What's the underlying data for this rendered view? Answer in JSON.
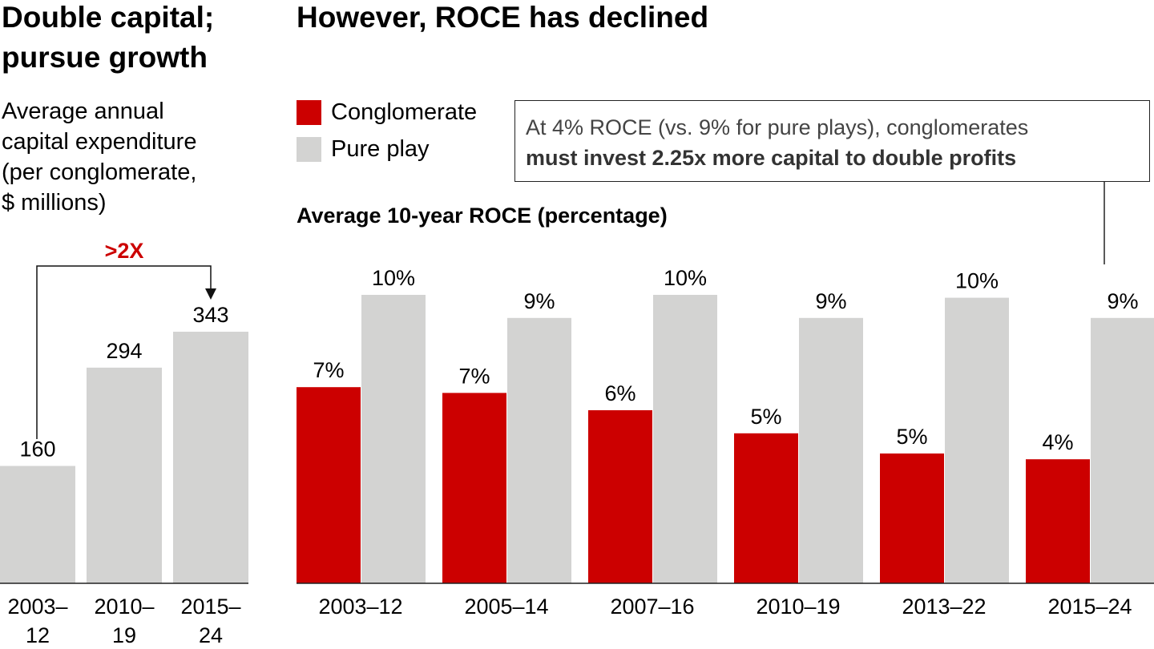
{
  "left_panel": {
    "title_line1": "Double capital;",
    "title_line2": "pursue growth",
    "subtitle_lines": [
      "Average annual",
      "capital expenditure",
      "(per conglomerate,",
      "$ millions)"
    ],
    "annotation": ">2X"
  },
  "right_panel": {
    "title": "However, ROCE has declined",
    "chart_label": "Average 10-year ROCE (percentage)",
    "callout_line1": "At 4% ROCE (vs. 9% for pure plays), conglomerates",
    "callout_line2": "must invest 2.25x more capital to double profits"
  },
  "colors": {
    "conglomerate": "#cc0000",
    "pure_play": "#d3d3d2",
    "annotation": "#cc0000"
  },
  "chart_data": [
    {
      "type": "bar",
      "title": "Double capital; pursue growth",
      "ylabel": "Average annual capital expenditure (per conglomerate, $ millions)",
      "categories": [
        [
          "2003–",
          "12"
        ],
        [
          "2010–",
          "19"
        ],
        [
          "2015–",
          "24"
        ]
      ],
      "values": [
        160,
        294,
        343
      ],
      "labels": [
        "160",
        "294",
        "343"
      ],
      "ylim": [
        0,
        400
      ],
      "grid": false
    },
    {
      "type": "bar",
      "title": "However, ROCE has declined",
      "ylabel": "Average 10-year ROCE (percentage)",
      "categories": [
        "2003–12",
        "2005–14",
        "2007–16",
        "2010–19",
        "2013–22",
        "2015–24"
      ],
      "legend": "top-left",
      "ylim": [
        0,
        12
      ],
      "grid": false,
      "series": [
        {
          "name": "Conglomerate",
          "values": [
            6.8,
            6.6,
            6.0,
            5.2,
            4.5,
            4.3
          ],
          "labels": [
            "7%",
            "7%",
            "6%",
            "5%",
            "5%",
            "4%"
          ]
        },
        {
          "name": "Pure play",
          "values": [
            10.0,
            9.2,
            10.0,
            9.2,
            9.9,
            9.2
          ],
          "labels": [
            "10%",
            "9%",
            "10%",
            "9%",
            "10%",
            "9%"
          ]
        }
      ]
    }
  ]
}
